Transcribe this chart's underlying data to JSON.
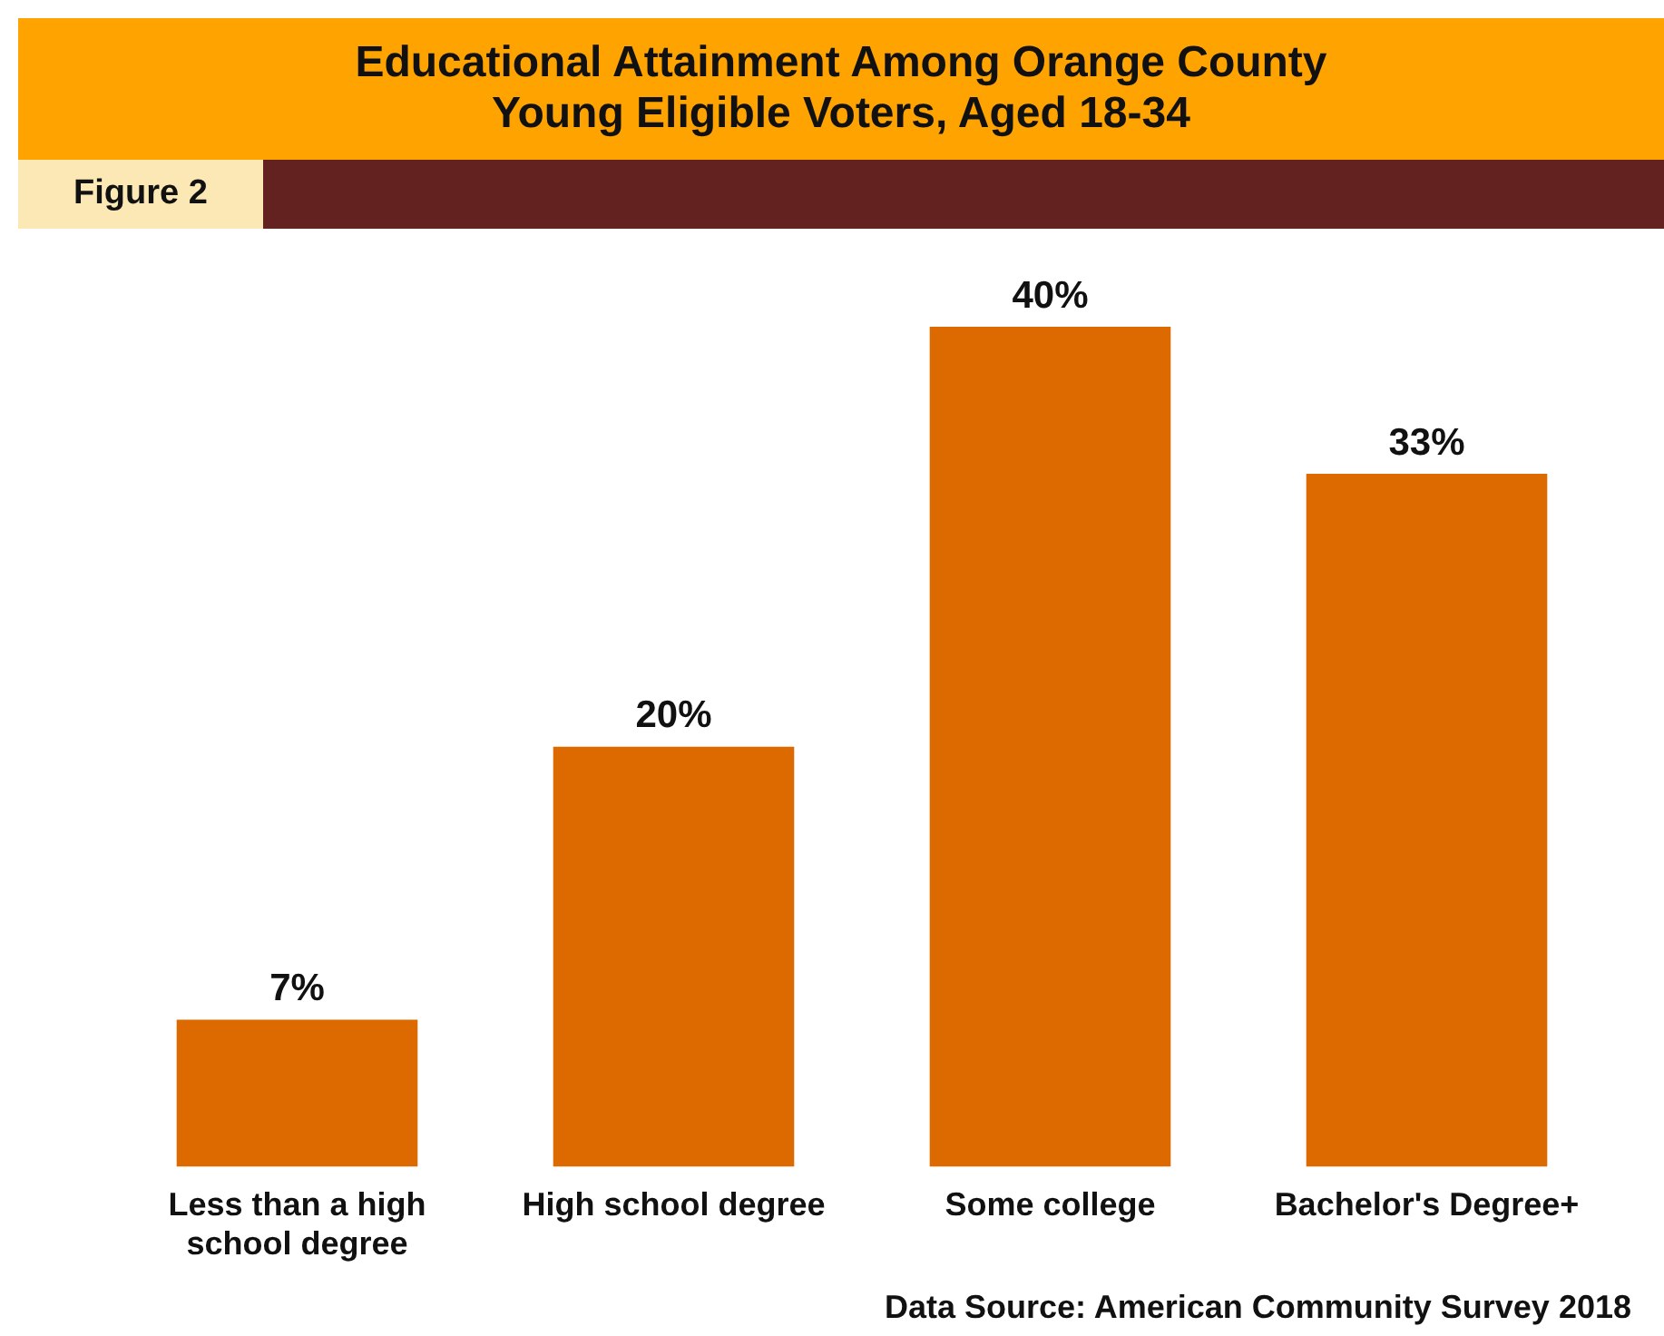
{
  "chart_data": {
    "type": "bar",
    "title": "Educational Attainment Among Orange County\nYoung Eligible Voters, Aged 18-34",
    "subtitle": "Figure 2",
    "categories": [
      "Less than a high school degree",
      "High school degree",
      "Some college",
      "Bachelor's Degree+"
    ],
    "values": [
      7,
      20,
      40,
      33
    ],
    "color": "#dd6a00",
    "tick_labels": "x",
    "data_labels": true,
    "value_labels": [
      "7%",
      "20%",
      "40%",
      "33%"
    ],
    "annotations": [
      "Data Source: American Community Survey 2018"
    ],
    "grid": false,
    "legend": false
  }
}
